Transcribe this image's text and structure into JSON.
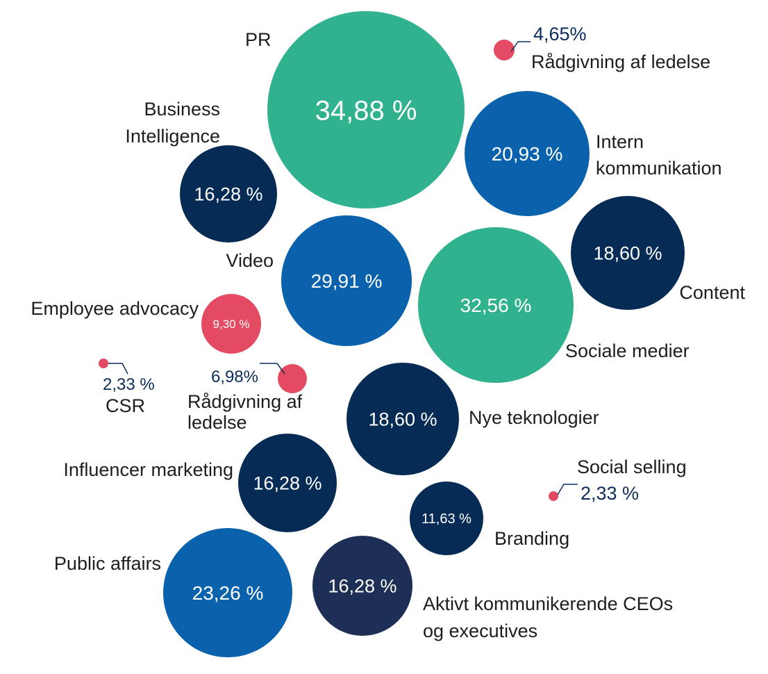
{
  "colors": {
    "green": "#31b28f",
    "mid_blue": "#0a62ad",
    "navy": "#062c56",
    "dark_slate": "#1d2f55",
    "red": "#e44a62",
    "label": "#1d1d1b",
    "leader": "#0a2d5a"
  },
  "chart_data": {
    "type": "bubble",
    "title": "",
    "items": [
      {
        "name": "PR",
        "value": 34.88,
        "value_label": "34,88 %",
        "color": "green"
      },
      {
        "name": "Rådgivning af ledelse",
        "value": 4.65,
        "value_label": "4,65%",
        "color": "red"
      },
      {
        "name": "Business Intelligence",
        "value": 16.28,
        "value_label": "16,28 %",
        "color": "navy"
      },
      {
        "name": "Intern kommunikation",
        "value": 20.93,
        "value_label": "20,93 %",
        "color": "mid_blue"
      },
      {
        "name": "Video",
        "value": 29.91,
        "value_label": "29,91 %",
        "color": "mid_blue"
      },
      {
        "name": "Sociale medier",
        "value": 32.56,
        "value_label": "32,56 %",
        "color": "green"
      },
      {
        "name": "Content",
        "value": 18.6,
        "value_label": "18,60 %",
        "color": "navy"
      },
      {
        "name": "Employee advocacy",
        "value": 9.3,
        "value_label": "9,30 %",
        "color": "red"
      },
      {
        "name": "CSR",
        "value": 2.33,
        "value_label": "2,33 %",
        "color": "red"
      },
      {
        "name": "Rådgivning af ledelse",
        "value": 6.98,
        "value_label": "6,98%",
        "color": "red"
      },
      {
        "name": "Nye teknologier",
        "value": 18.6,
        "value_label": "18,60 %",
        "color": "navy"
      },
      {
        "name": "Influencer marketing",
        "value": 16.28,
        "value_label": "16,28 %",
        "color": "navy"
      },
      {
        "name": "Social selling",
        "value": 2.33,
        "value_label": "2,33 %",
        "color": "red"
      },
      {
        "name": "Branding",
        "value": 11.63,
        "value_label": "11,63 %",
        "color": "navy"
      },
      {
        "name": "Public affairs",
        "value": 23.26,
        "value_label": "23,26 %",
        "color": "mid_blue"
      },
      {
        "name": "Aktivt kommunikerende CEOs og executives",
        "value": 16.28,
        "value_label": "16,28 %",
        "color": "dark_slate"
      }
    ]
  }
}
